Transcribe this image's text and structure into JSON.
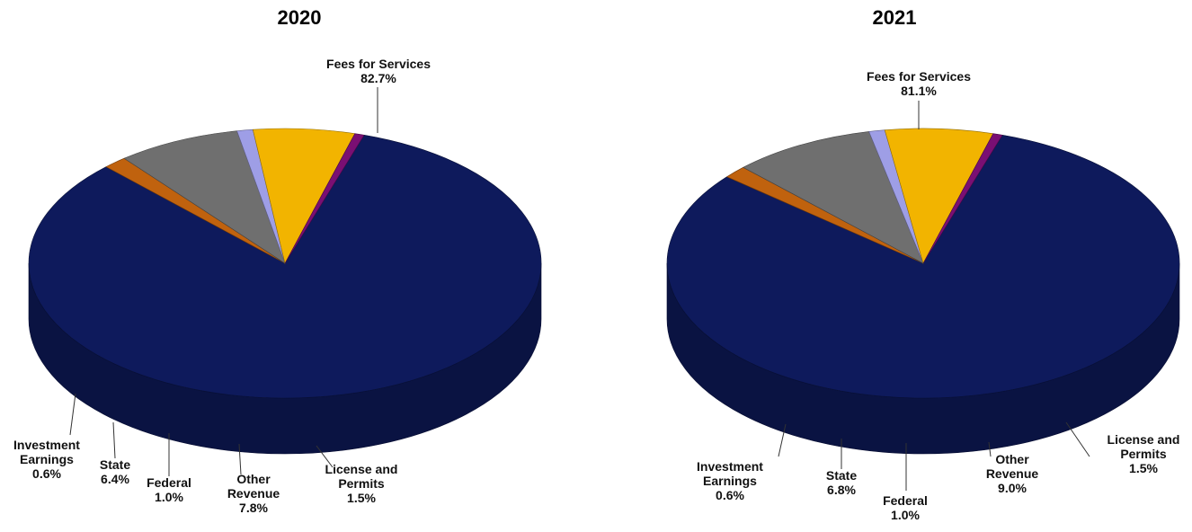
{
  "chart_data": [
    {
      "type": "pie",
      "title": "2020",
      "slices": [
        {
          "label": "Fees for Services",
          "pct_text": "82.7%",
          "value": 82.7,
          "color": "#0e1a5c"
        },
        {
          "label": "License and Permits",
          "pct_text": "1.5%",
          "value": 1.5,
          "color": "#c0620e"
        },
        {
          "label": "Other Revenue",
          "pct_text": "7.8%",
          "value": 7.8,
          "color": "#6f6f6f"
        },
        {
          "label": "Federal",
          "pct_text": "1.0%",
          "value": 1.0,
          "color": "#9e9ee6"
        },
        {
          "label": "State",
          "pct_text": "6.4%",
          "value": 6.4,
          "color": "#f2b400"
        },
        {
          "label": "Investment Earnings",
          "pct_text": "0.6%",
          "value": 0.6,
          "color": "#7a0f73"
        }
      ]
    },
    {
      "type": "pie",
      "title": "2021",
      "slices": [
        {
          "label": "Fees for Services",
          "pct_text": "81.1%",
          "value": 81.1,
          "color": "#0e1a5c"
        },
        {
          "label": "License and Permits",
          "pct_text": "1.5%",
          "value": 1.5,
          "color": "#c0620e"
        },
        {
          "label": "Other Revenue",
          "pct_text": "9.0%",
          "value": 9.0,
          "color": "#6f6f6f"
        },
        {
          "label": "Federal",
          "pct_text": "1.0%",
          "value": 1.0,
          "color": "#9e9ee6"
        },
        {
          "label": "State",
          "pct_text": "6.8%",
          "value": 6.8,
          "color": "#f2b400"
        },
        {
          "label": "Investment Earnings",
          "pct_text": "0.6%",
          "value": 0.6,
          "color": "#7a0f73"
        }
      ]
    }
  ]
}
